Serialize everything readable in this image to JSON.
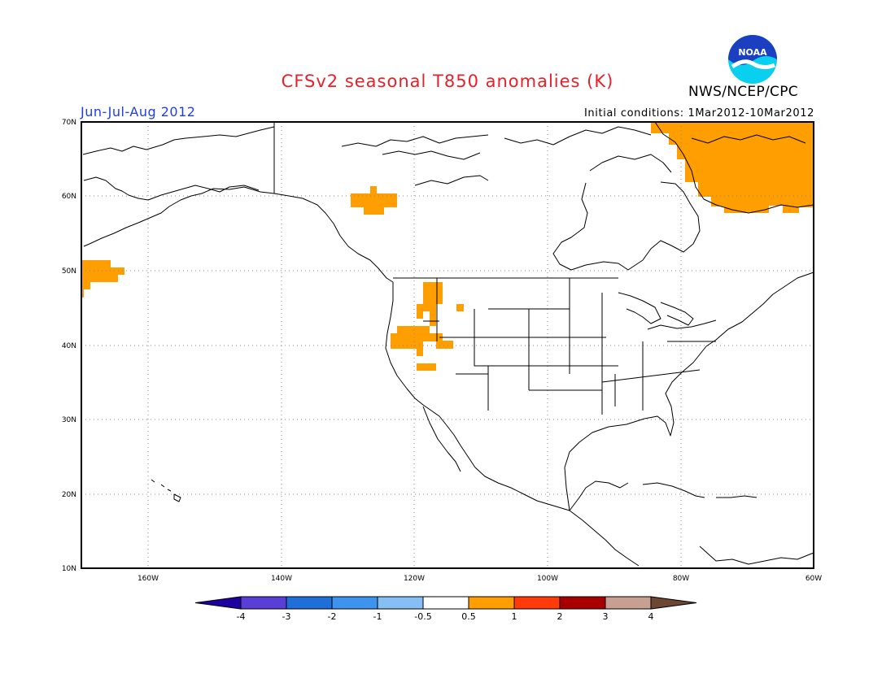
{
  "header": {
    "title": "CFSv2 seasonal T850 anomalies (K)",
    "season": "Jun-Jul-Aug 2012",
    "initial_conditions": "Initial conditions: 1Mar2012-10Mar2012",
    "agency": "NWS/NCEP/CPC",
    "logo_text": "NOAA"
  },
  "colors": {
    "title": "#e8202a",
    "season": "#1f3ee6",
    "positive_anomaly_fill": "#ff9e00",
    "map_lines": "#000000"
  },
  "map": {
    "projection": "cylindrical-equidistant",
    "lon_range": [
      -172,
      -60
    ],
    "lat_range": [
      10,
      70
    ],
    "gridlines": "dotted",
    "lat_labels": [
      "70N",
      "60N",
      "50N",
      "40N",
      "30N",
      "20N",
      "10N"
    ],
    "lon_labels": [
      "160W",
      "140W",
      "120W",
      "100W",
      "80W",
      "60W"
    ],
    "anomaly_regions": [
      {
        "name": "greenland-eastern-canada",
        "category": "0.5 to 1"
      },
      {
        "name": "north-pacific-west-edge",
        "category": "0.5 to 1"
      },
      {
        "name": "yukon-bc-north",
        "category": "0.5 to 1"
      },
      {
        "name": "idaho-montana",
        "category": "0.5 to 1"
      },
      {
        "name": "nevada-great-basin",
        "category": "0.5 to 1"
      },
      {
        "name": "southern-nevada",
        "category": "0.5 to 1"
      }
    ]
  },
  "colorbar": {
    "labels": [
      "-4",
      "-3",
      "-2",
      "-1",
      "-0.5",
      "0.5",
      "1",
      "2",
      "3",
      "4"
    ],
    "colors": [
      "#1e00a0",
      "#5a3fd6",
      "#1f6fd9",
      "#3d93ee",
      "#86bff4",
      "#ffffff",
      "#ff9e00",
      "#ff3b0a",
      "#a80000",
      "#c8a092",
      "#6e4634"
    ]
  }
}
